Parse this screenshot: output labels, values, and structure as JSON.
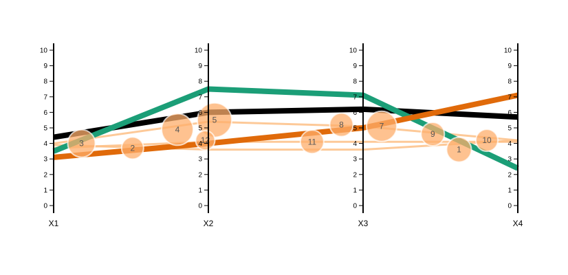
{
  "chart_data": {
    "type": "line",
    "axes": [
      "X1",
      "X2",
      "X3",
      "X4"
    ],
    "ylim": [
      0,
      10
    ],
    "ticks": [
      "0",
      "1",
      "2",
      "3",
      "4",
      "5",
      "6",
      "7",
      "8",
      "9",
      "10"
    ],
    "series": [
      {
        "color": "#000000",
        "values": [
          4.4,
          6.0,
          6.2,
          5.7
        ]
      },
      {
        "color": "#1b9e77",
        "values": [
          3.5,
          7.5,
          7.1,
          2.4
        ]
      },
      {
        "color": "#e06a0a",
        "values": [
          3.1,
          4.0,
          5.0,
          7.1
        ]
      }
    ],
    "background_lines": {
      "color": "#fdbf86",
      "lines": [
        [
          4.0,
          5.4,
          5.1,
          4.2
        ],
        [
          3.9,
          3.6,
          3.6,
          4.2
        ],
        [
          3.7,
          4.1,
          4.1,
          4.1
        ]
      ]
    },
    "points": [
      {
        "label": "1",
        "axis_pos": 2.62,
        "value": 3.6,
        "size": 18
      },
      {
        "label": "2",
        "axis_pos": 0.51,
        "value": 3.7,
        "size": 16
      },
      {
        "label": "3",
        "axis_pos": 0.18,
        "value": 4.0,
        "size": 20
      },
      {
        "label": "4",
        "axis_pos": 0.8,
        "value": 4.9,
        "size": 23
      },
      {
        "label": "5",
        "axis_pos": 1.04,
        "value": 5.5,
        "size": 25
      },
      {
        "label": "7",
        "axis_pos": 2.12,
        "value": 5.1,
        "size": 22
      },
      {
        "label": "8",
        "axis_pos": 1.86,
        "value": 5.2,
        "size": 17
      },
      {
        "label": "9",
        "axis_pos": 2.45,
        "value": 4.6,
        "size": 17
      },
      {
        "label": "10",
        "axis_pos": 2.8,
        "value": 4.2,
        "size": 16
      },
      {
        "label": "11",
        "axis_pos": 1.67,
        "value": 4.1,
        "size": 17
      },
      {
        "label": "12",
        "axis_pos": 0.98,
        "value": 4.2,
        "size": 14
      }
    ],
    "bubble_color": "#fdae6b",
    "title": "",
    "xlabel": "",
    "ylabel": "",
    "grid": false
  }
}
